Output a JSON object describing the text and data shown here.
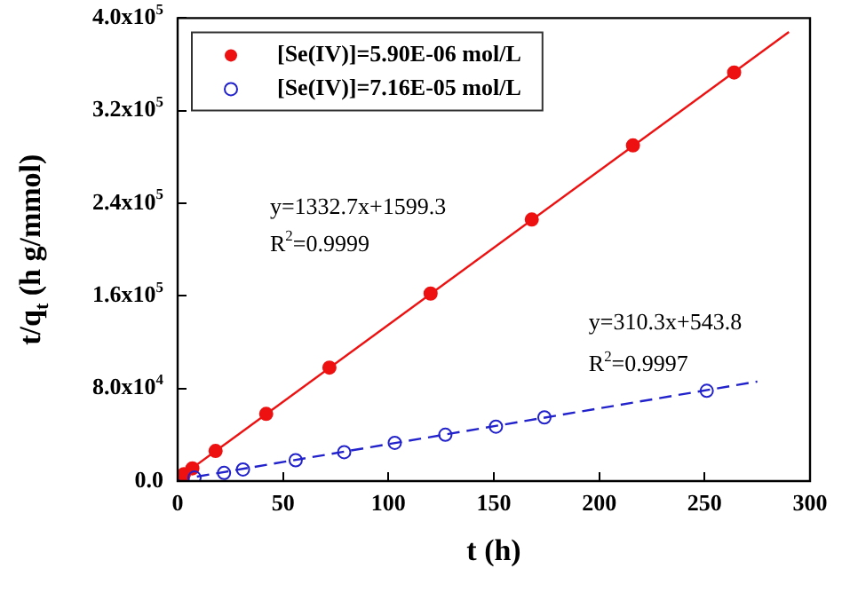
{
  "chart_data": {
    "type": "scatter",
    "xlabel": "t (h)",
    "ylabel": "t/q$_{t}$ (h g/mmol)",
    "xlim": [
      0,
      300
    ],
    "xticks": [
      0,
      50,
      100,
      150,
      200,
      250,
      300
    ],
    "ylim": [
      0,
      400000
    ],
    "yticks": [
      {
        "value": 0,
        "label": "0.0"
      },
      {
        "value": 80000,
        "label": "8.0x10$^{4}$"
      },
      {
        "value": 160000,
        "label": "1.6x10$^{5}$"
      },
      {
        "value": 240000,
        "label": "2.4x10$^{5}$"
      },
      {
        "value": 320000,
        "label": "3.2x10$^{5}$"
      },
      {
        "value": 400000,
        "label": "4.0x10$^{5}$"
      }
    ],
    "grid": false,
    "legend": "top left",
    "series": [
      {
        "name": "[Se(IV)]=5.90E-06 mol/L",
        "color": "#ee1111",
        "marker": "circle",
        "x": [
          3,
          7,
          18,
          42,
          72,
          120,
          168,
          216,
          264
        ],
        "values": [
          6000,
          11000,
          26000,
          58000,
          98000,
          162000,
          226000,
          290000,
          353000
        ]
      },
      {
        "name": "[Se(IV)]=7.16E-05 mol/L",
        "color": "#2222cc",
        "marker": "circle-open",
        "x": [
          8,
          22,
          31,
          56,
          79,
          103,
          127,
          151,
          174,
          251
        ],
        "values": [
          3000,
          7000,
          10000,
          18000,
          25000,
          33000,
          40000,
          47000,
          55000,
          78000
        ]
      },
      {
        "type": "line",
        "color": "#ee1111",
        "line_style": "solid",
        "x": [
          0,
          290
        ],
        "values": [
          2000,
          388000
        ]
      },
      {
        "type": "line",
        "color": "#2222cc",
        "line_style": "dashed",
        "x": [
          0,
          275
        ],
        "values": [
          1000,
          86000
        ]
      }
    ],
    "annotations": [
      "y=1332.7x+1599.3",
      "R$^{2}$=0.9999",
      "y=310.3x+543.8",
      "R$^{2}$=0.9997"
    ]
  }
}
